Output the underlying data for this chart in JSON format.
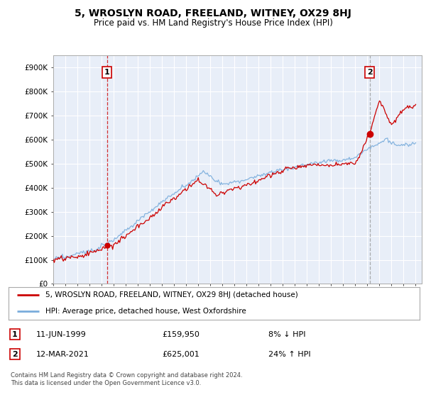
{
  "title": "5, WROSLYN ROAD, FREELAND, WITNEY, OX29 8HJ",
  "subtitle": "Price paid vs. HM Land Registry's House Price Index (HPI)",
  "ylabel_ticks": [
    "£0",
    "£100K",
    "£200K",
    "£300K",
    "£400K",
    "£500K",
    "£600K",
    "£700K",
    "£800K",
    "£900K"
  ],
  "ytick_values": [
    0,
    100000,
    200000,
    300000,
    400000,
    500000,
    600000,
    700000,
    800000,
    900000
  ],
  "ylim": [
    0,
    950000
  ],
  "xlim_start": 1995.0,
  "xlim_end": 2025.5,
  "sale1_x": 1999.44,
  "sale1_y": 159950,
  "sale1_label": "1",
  "sale1_date": "11-JUN-1999",
  "sale1_price": "£159,950",
  "sale1_hpi": "8% ↓ HPI",
  "sale2_x": 2021.19,
  "sale2_y": 625001,
  "sale2_label": "2",
  "sale2_date": "12-MAR-2021",
  "sale2_price": "£625,001",
  "sale2_hpi": "24% ↑ HPI",
  "line_color_property": "#cc0000",
  "line_color_hpi": "#7aaddc",
  "vline1_color": "#cc0000",
  "vline2_color": "#999999",
  "background_color": "#ffffff",
  "plot_bg_color": "#e8eef8",
  "grid_color": "#ffffff",
  "legend_label_property": "5, WROSLYN ROAD, FREELAND, WITNEY, OX29 8HJ (detached house)",
  "legend_label_hpi": "HPI: Average price, detached house, West Oxfordshire",
  "footer": "Contains HM Land Registry data © Crown copyright and database right 2024.\nThis data is licensed under the Open Government Licence v3.0."
}
